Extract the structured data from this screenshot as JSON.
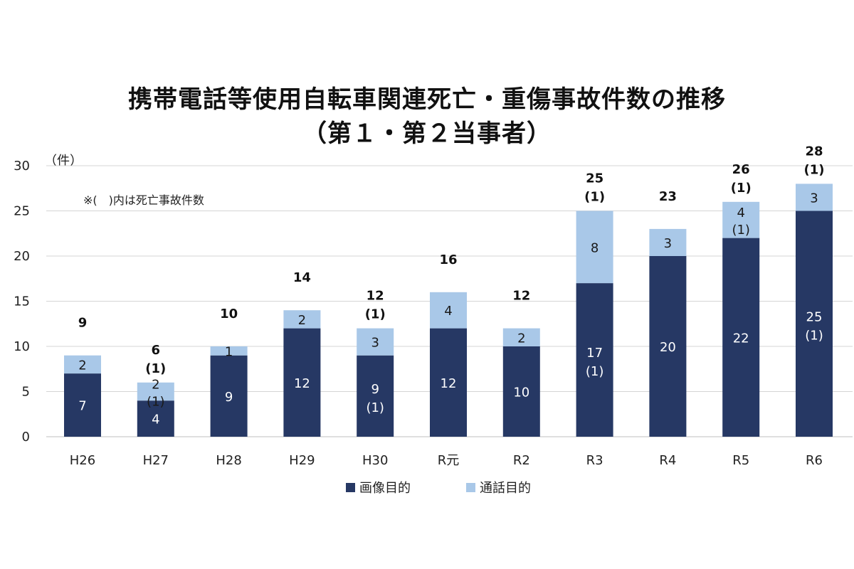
{
  "colors": {
    "image": "#263864",
    "call": "#a9c8e8",
    "grid": "#d4d4d4"
  },
  "chart_data": {
    "type": "bar",
    "stacked": true,
    "title_line1": "携帯電話等使用自転車関連死亡・重傷事故件数の推移",
    "title_line2": "（第１・第２当事者）",
    "ylabel": "（件）",
    "note": "※(　)内は死亡事故件数",
    "ylim": [
      0,
      30
    ],
    "yticks": [
      0,
      5,
      10,
      15,
      20,
      25,
      30
    ],
    "categories": [
      "H26",
      "H27",
      "H28",
      "H29",
      "H30",
      "R元",
      "R2",
      "R3",
      "R4",
      "R5",
      "R6"
    ],
    "series": [
      {
        "name": "画像目的",
        "values": [
          7,
          4,
          9,
          12,
          9,
          12,
          10,
          17,
          20,
          22,
          25
        ],
        "deaths": [
          "",
          "",
          "",
          "",
          "(1)",
          "",
          "",
          "(1)",
          "",
          "",
          "(1)"
        ]
      },
      {
        "name": "通話目的",
        "values": [
          2,
          2,
          1,
          2,
          3,
          4,
          2,
          8,
          3,
          4,
          3
        ],
        "deaths": [
          "",
          "(1)",
          "",
          "",
          "",
          "",
          "",
          "",
          "",
          "(1)",
          ""
        ]
      }
    ],
    "totals": [
      9,
      6,
      10,
      14,
      12,
      16,
      12,
      25,
      23,
      26,
      28
    ],
    "total_deaths": [
      "",
      "(1)",
      "",
      "",
      "(1)",
      "",
      "",
      "(1)",
      "",
      "(1)",
      "(1)"
    ]
  }
}
